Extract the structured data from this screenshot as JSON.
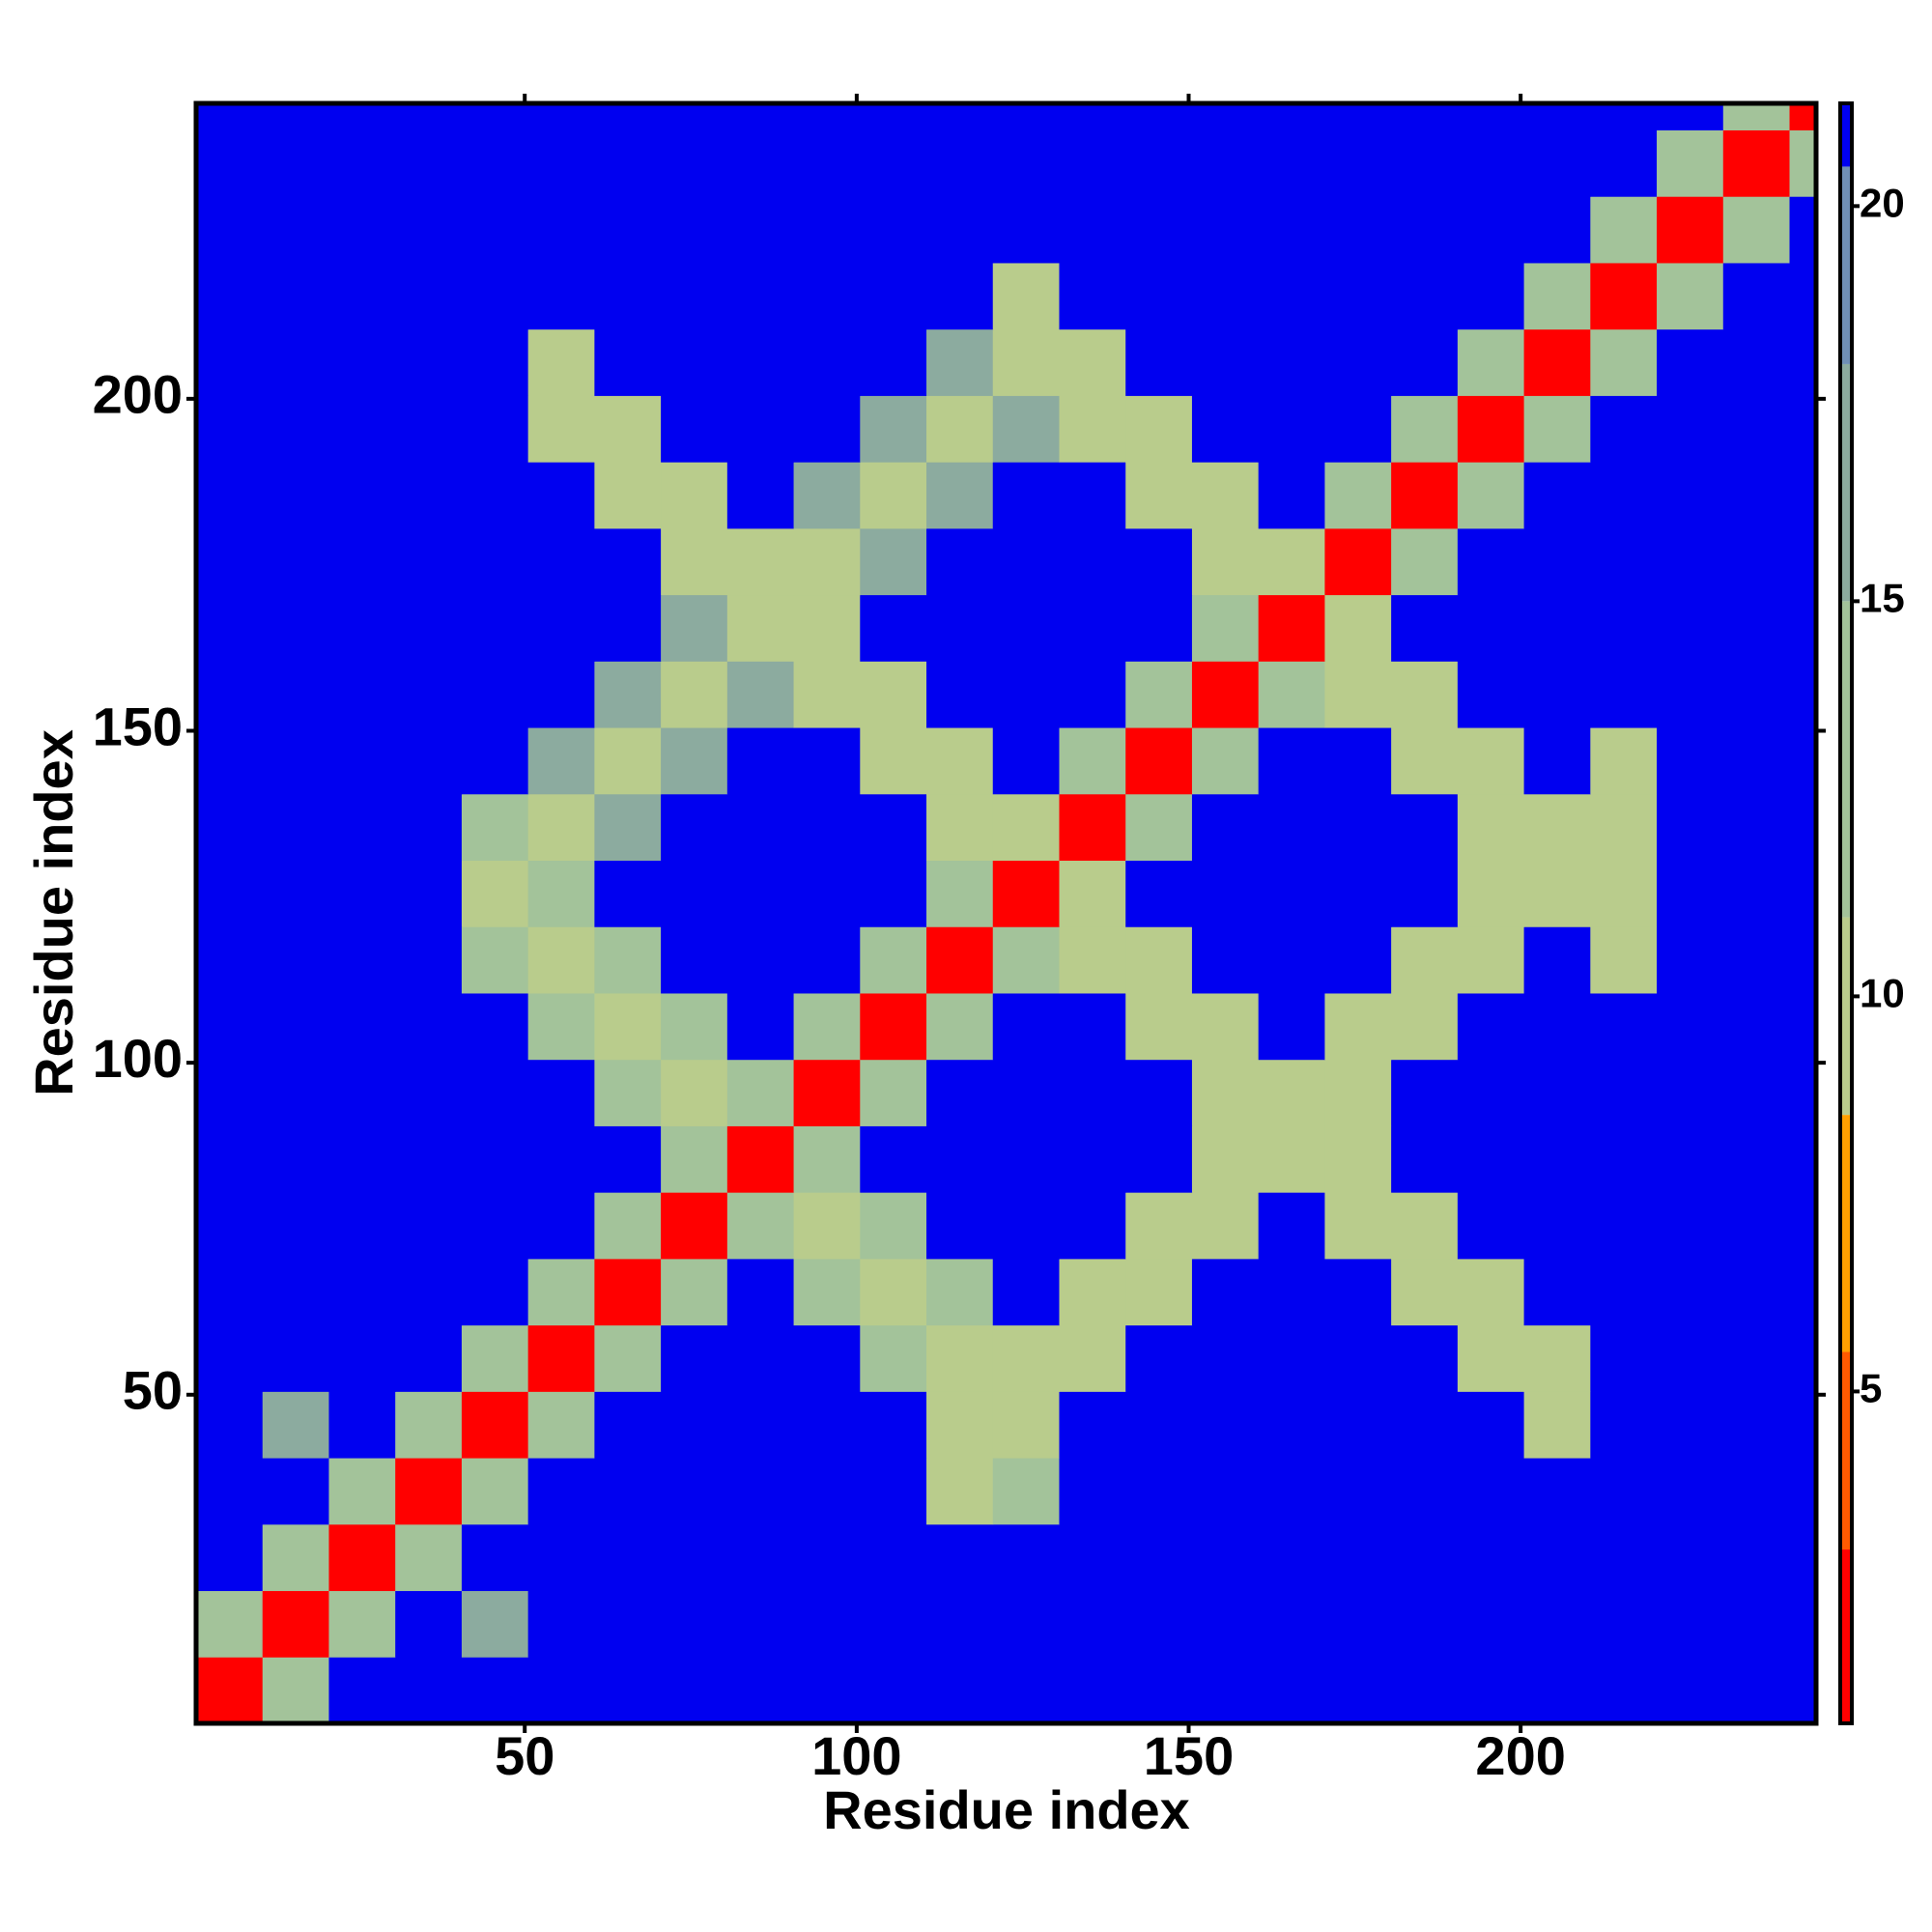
{
  "chart_data": {
    "type": "heatmap",
    "xlabel": "Residue index",
    "ylabel": "Residue index",
    "x": [
      5.5,
      15.5,
      25.5,
      35.5,
      45.5,
      55.5,
      65.5,
      75.5,
      85.5,
      95.5,
      105.5,
      115.5,
      125.5,
      135.5,
      145.5,
      155.5,
      165.5,
      175.5,
      185.5,
      195.5,
      205.5,
      215.5,
      225.5,
      235.5,
      245.5
    ],
    "y": [
      5.5,
      15.5,
      25.5,
      35.5,
      45.5,
      55.5,
      65.5,
      75.5,
      85.5,
      95.5,
      105.5,
      115.5,
      125.5,
      135.5,
      145.5,
      155.5,
      165.5,
      175.5,
      185.5,
      195.5,
      205.5,
      215.5,
      225.5,
      235.5,
      245.5
    ],
    "values": [
      [
        3,
        12,
        21,
        21,
        21,
        21,
        21,
        21,
        21,
        21,
        21,
        21,
        21,
        21,
        21,
        21,
        21,
        21,
        21,
        21,
        21,
        21,
        21,
        21,
        21
      ],
      [
        12,
        3,
        12,
        21,
        18,
        21,
        21,
        21,
        21,
        21,
        21,
        21,
        21,
        21,
        21,
        21,
        21,
        21,
        21,
        21,
        21,
        21,
        21,
        21,
        21
      ],
      [
        21,
        12,
        3,
        12,
        21,
        21,
        21,
        21,
        21,
        21,
        21,
        21,
        21,
        21,
        21,
        21,
        21,
        21,
        21,
        21,
        21,
        21,
        21,
        21,
        21
      ],
      [
        21,
        21,
        12,
        3,
        12,
        21,
        21,
        21,
        21,
        21,
        21,
        11,
        15,
        21,
        21,
        21,
        21,
        21,
        21,
        21,
        21,
        21,
        21,
        21,
        21
      ],
      [
        21,
        18,
        21,
        12,
        3,
        12,
        21,
        21,
        21,
        21,
        21,
        11,
        10,
        21,
        21,
        21,
        21,
        21,
        21,
        21,
        11,
        21,
        21,
        21,
        21
      ],
      [
        21,
        21,
        21,
        21,
        12,
        3,
        12,
        21,
        21,
        21,
        15,
        10,
        11,
        11,
        21,
        21,
        21,
        21,
        21,
        11,
        11,
        21,
        21,
        21,
        21
      ],
      [
        21,
        21,
        21,
        21,
        21,
        12,
        3,
        12,
        21,
        15,
        10,
        15,
        21,
        11,
        11,
        21,
        21,
        21,
        11,
        11,
        21,
        21,
        21,
        21,
        21
      ],
      [
        21,
        21,
        21,
        21,
        21,
        21,
        12,
        3,
        12,
        10,
        15,
        21,
        21,
        21,
        11,
        11,
        21,
        11,
        11,
        21,
        21,
        21,
        21,
        21,
        21
      ],
      [
        21,
        21,
        21,
        21,
        21,
        21,
        21,
        12,
        3,
        12,
        21,
        21,
        21,
        21,
        21,
        11,
        11,
        11,
        21,
        21,
        21,
        21,
        21,
        21,
        21
      ],
      [
        21,
        21,
        21,
        21,
        21,
        21,
        15,
        10,
        12,
        3,
        12,
        21,
        21,
        21,
        21,
        11,
        11,
        11,
        21,
        21,
        21,
        21,
        21,
        21,
        21
      ],
      [
        21,
        21,
        21,
        21,
        21,
        15,
        10,
        15,
        21,
        12,
        3,
        12,
        21,
        21,
        11,
        11,
        21,
        11,
        11,
        21,
        21,
        21,
        21,
        21,
        21
      ],
      [
        21,
        21,
        21,
        21,
        15,
        10,
        15,
        21,
        21,
        21,
        12,
        3,
        12,
        11,
        11,
        21,
        21,
        21,
        11,
        11,
        21,
        11,
        21,
        21,
        21
      ],
      [
        21,
        21,
        21,
        21,
        10,
        15,
        21,
        21,
        21,
        21,
        21,
        12,
        3,
        11,
        21,
        21,
        21,
        21,
        21,
        11,
        11,
        11,
        21,
        21,
        21
      ],
      [
        21,
        21,
        21,
        21,
        15,
        10,
        16,
        21,
        21,
        21,
        21,
        11,
        11,
        3,
        12,
        21,
        21,
        21,
        21,
        11,
        11,
        11,
        21,
        21,
        21
      ],
      [
        21,
        21,
        21,
        21,
        21,
        16,
        10,
        16,
        21,
        21,
        11,
        11,
        21,
        12,
        3,
        12,
        21,
        21,
        11,
        11,
        21,
        11,
        21,
        21,
        21
      ],
      [
        21,
        21,
        21,
        21,
        21,
        21,
        16,
        10,
        16,
        11,
        11,
        21,
        21,
        21,
        12,
        3,
        12,
        11,
        11,
        21,
        21,
        21,
        21,
        21,
        21
      ],
      [
        21,
        21,
        21,
        21,
        21,
        21,
        21,
        16,
        10,
        11,
        21,
        21,
        21,
        21,
        21,
        12,
        3,
        11,
        21,
        21,
        21,
        21,
        21,
        21,
        21
      ],
      [
        21,
        21,
        21,
        21,
        21,
        21,
        21,
        11,
        11,
        10,
        16,
        21,
        21,
        21,
        21,
        11,
        11,
        3,
        12,
        21,
        21,
        21,
        21,
        21,
        21
      ],
      [
        21,
        21,
        21,
        21,
        21,
        21,
        11,
        11,
        21,
        16,
        10,
        16,
        21,
        21,
        11,
        11,
        21,
        12,
        3,
        12,
        21,
        21,
        21,
        21,
        21
      ],
      [
        21,
        21,
        21,
        21,
        21,
        11,
        11,
        21,
        21,
        21,
        16,
        10,
        16,
        11,
        11,
        21,
        21,
        21,
        12,
        3,
        12,
        21,
        21,
        21,
        21
      ],
      [
        21,
        21,
        21,
        21,
        21,
        11,
        21,
        21,
        21,
        21,
        21,
        16,
        10,
        11,
        21,
        21,
        21,
        21,
        21,
        12,
        3,
        12,
        21,
        21,
        21
      ],
      [
        21,
        21,
        21,
        21,
        21,
        21,
        21,
        21,
        21,
        21,
        21,
        21,
        11,
        21,
        21,
        21,
        21,
        21,
        21,
        21,
        12,
        3,
        12,
        21,
        21
      ],
      [
        21,
        21,
        21,
        21,
        21,
        21,
        21,
        21,
        21,
        21,
        21,
        21,
        21,
        21,
        21,
        21,
        21,
        21,
        21,
        21,
        21,
        12,
        3,
        12,
        21
      ],
      [
        21,
        21,
        21,
        21,
        21,
        21,
        21,
        21,
        21,
        21,
        21,
        21,
        21,
        21,
        21,
        21,
        21,
        21,
        21,
        21,
        21,
        21,
        12,
        3,
        12
      ],
      [
        21,
        21,
        21,
        21,
        21,
        21,
        21,
        21,
        21,
        21,
        21,
        21,
        21,
        21,
        21,
        21,
        21,
        21,
        21,
        21,
        21,
        21,
        21,
        12,
        3
      ]
    ],
    "xlim": [
      0.5,
      244.5
    ],
    "ylim": [
      0.5,
      244.5
    ],
    "xticks": [
      50,
      100,
      150,
      200
    ],
    "yticks": [
      50,
      100,
      150,
      200
    ],
    "zlim": [
      0.8,
      21.3
    ],
    "zticks": [
      5,
      10,
      15,
      20
    ],
    "colorscale": [
      {
        "value": 3,
        "color": "#ff0000"
      },
      {
        "value": 5.5,
        "color": "#ff5a00"
      },
      {
        "value": 8.5,
        "color": "#ffa000"
      },
      {
        "value": 11,
        "color": "#b9cc8c"
      },
      {
        "value": 15,
        "color": "#a3c39a"
      },
      {
        "value": 18,
        "color": "#8cab9f"
      },
      {
        "value": 20.5,
        "color": "#6f8fb5"
      },
      {
        "value": 21.3,
        "color": "#0000f0"
      }
    ]
  }
}
